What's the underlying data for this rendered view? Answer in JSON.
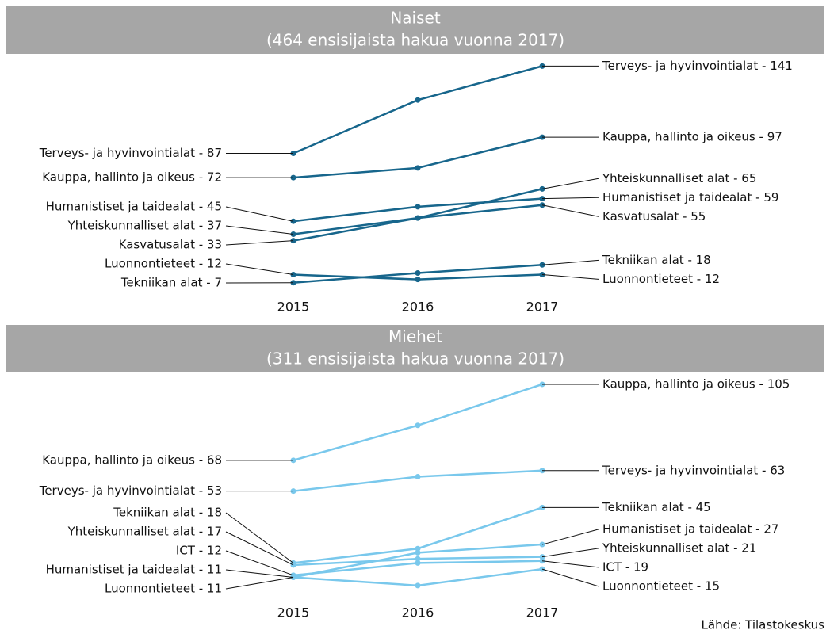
{
  "chart_data": [
    {
      "type": "line",
      "title": "Naiset",
      "subtitle": "(464 ensisijaista hakua vuonna 2017)",
      "categories": [
        "2015",
        "2016",
        "2017"
      ],
      "ylim": [
        0,
        150
      ],
      "series": [
        {
          "name": "Terveys- ja hyvinvointialat",
          "color": "#17668c",
          "values": [
            87,
            120,
            141
          ],
          "value_labels": [
            "Terveys- ja hyvinvointialat - 87",
            null,
            "Terveys- ja hyvinvointialat - 141"
          ]
        },
        {
          "name": "Kauppa, hallinto ja oikeus",
          "color": "#17668c",
          "values": [
            72,
            78,
            97
          ],
          "value_labels": [
            "Kauppa, hallinto ja oikeus - 72",
            null,
            "Kauppa, hallinto ja oikeus - 97"
          ]
        },
        {
          "name": "Humanistiset ja taidealat",
          "color": "#17668c",
          "values": [
            45,
            54,
            59
          ],
          "value_labels": [
            "Humanistiset ja taidealat - 45",
            null,
            "Humanistiset ja taidealat - 59"
          ]
        },
        {
          "name": "Yhteiskunnalliset alat",
          "color": "#17668c",
          "values": [
            37,
            47,
            65
          ],
          "value_labels": [
            "Yhteiskunnalliset alat - 37",
            null,
            "Yhteiskunnalliset alat - 65"
          ]
        },
        {
          "name": "Kasvatusalat",
          "color": "#17668c",
          "values": [
            33,
            47,
            55
          ],
          "value_labels": [
            "Kasvatusalat - 33",
            null,
            "Kasvatusalat - 55"
          ]
        },
        {
          "name": "Luonnontieteet",
          "color": "#17668c",
          "values": [
            12,
            9,
            12
          ],
          "value_labels": [
            "Luonnontieteet - 12",
            null,
            "Luonnontieteet - 12"
          ]
        },
        {
          "name": "Tekniikan alat",
          "color": "#17668c",
          "values": [
            7,
            13,
            18
          ],
          "value_labels": [
            "Tekniikan alat - 7",
            null,
            "Tekniikan alat - 18"
          ]
        }
      ]
    },
    {
      "type": "line",
      "title": "Miehet",
      "subtitle": "(311 ensisijaista hakua vuonna 2017)",
      "categories": [
        "2015",
        "2016",
        "2017"
      ],
      "ylim": [
        0,
        110
      ],
      "series": [
        {
          "name": "Kauppa, hallinto ja oikeus",
          "color": "#79c8ec",
          "values": [
            68,
            85,
            105
          ],
          "value_labels": [
            "Kauppa, hallinto ja oikeus - 68",
            null,
            "Kauppa, hallinto ja oikeus - 105"
          ]
        },
        {
          "name": "Terveys- ja hyvinvointialat",
          "color": "#79c8ec",
          "values": [
            53,
            60,
            63
          ],
          "value_labels": [
            "Terveys- ja hyvinvointialat - 53",
            null,
            "Terveys- ja hyvinvointialat - 63"
          ]
        },
        {
          "name": "Tekniikan alat",
          "color": "#79c8ec",
          "values": [
            18,
            25,
            45
          ],
          "value_labels": [
            "Tekniikan alat - 18",
            null,
            "Tekniikan alat - 45"
          ]
        },
        {
          "name": "Yhteiskunnalliset alat",
          "color": "#79c8ec",
          "values": [
            17,
            20,
            21
          ],
          "value_labels": [
            "Yhteiskunnalliset alat - 17",
            null,
            "Yhteiskunnalliset alat - 21"
          ]
        },
        {
          "name": "ICT",
          "color": "#79c8ec",
          "values": [
            12,
            18,
            19
          ],
          "value_labels": [
            "ICT - 12",
            null,
            "ICT - 19"
          ]
        },
        {
          "name": "Humanistiset ja taidealat",
          "color": "#79c8ec",
          "values": [
            11,
            23,
            27
          ],
          "value_labels": [
            "Humanistiset ja taidealat - 11",
            null,
            "Humanistiset ja taidealat - 27"
          ]
        },
        {
          "name": "Luonnontieteet",
          "color": "#79c8ec",
          "values": [
            11,
            7,
            15
          ],
          "value_labels": [
            "Luonnontieteet - 11",
            null,
            "Luonnontieteet - 15"
          ]
        }
      ]
    }
  ],
  "source": "Lähde: Tilastokeskus"
}
